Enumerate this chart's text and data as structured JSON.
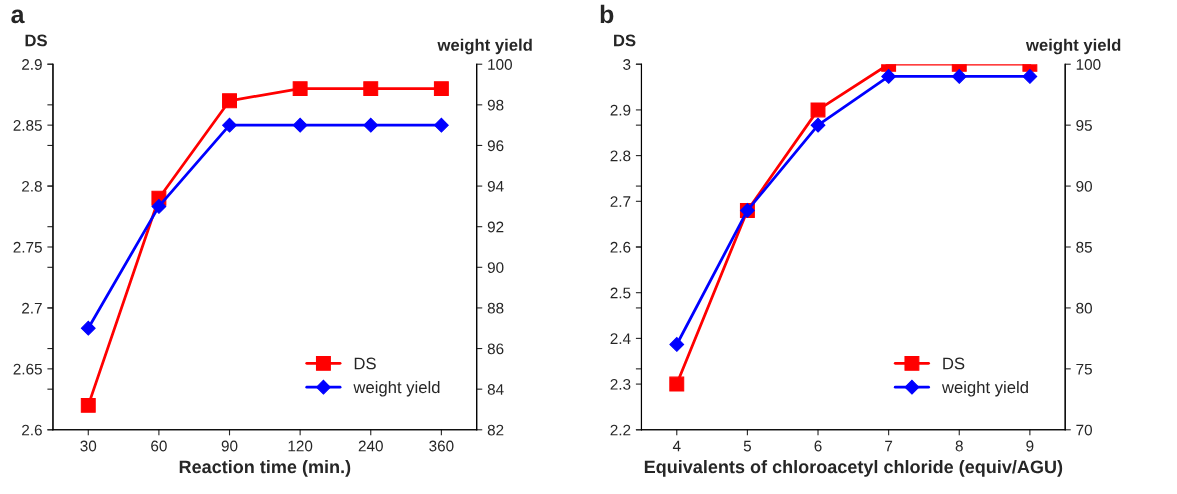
{
  "chart_data": [
    {
      "type": "line",
      "title": "a",
      "xlabel": "Reaction time (min.)",
      "ylabel": "DS",
      "y2label": "weight yield",
      "categories": [
        "30",
        "60",
        "90",
        "120",
        "240",
        "360"
      ],
      "series": [
        {
          "name": "DS",
          "color": "#ff0000",
          "marker": "square",
          "values": [
            2.62,
            2.79,
            2.87,
            2.88,
            2.88,
            2.88
          ]
        },
        {
          "name": "weight yield",
          "color": "#0000ff",
          "marker": "diamond",
          "axis": "y2",
          "values": [
            87,
            93,
            97,
            97,
            97,
            97
          ]
        }
      ],
      "ylim": [
        2.6,
        2.9
      ],
      "yticks": [
        2.6,
        2.65,
        2.7,
        2.75,
        2.8,
        2.85,
        2.9
      ],
      "y2lim": [
        82,
        100
      ],
      "y2ticks": [
        82,
        84,
        86,
        88,
        90,
        92,
        94,
        96,
        98,
        100
      ],
      "legend": "bottom right",
      "line_style": "solid"
    },
    {
      "type": "line",
      "title": "b",
      "xlabel": "Equivalents of chloroacetyl chloride (equiv/AGU)",
      "ylabel": "DS",
      "y2label": "weight yield",
      "categories": [
        "4",
        "5",
        "6",
        "7",
        "8",
        "9"
      ],
      "series": [
        {
          "name": "DS",
          "color": "#ff0000",
          "marker": "square",
          "values": [
            2.3,
            2.68,
            2.9,
            3.0,
            3.0,
            3.0
          ]
        },
        {
          "name": "weight yield",
          "color": "#0000ff",
          "marker": "diamond",
          "axis": "y2",
          "values": [
            77,
            88,
            95,
            99,
            99,
            99
          ]
        }
      ],
      "ylim": [
        2.2,
        3
      ],
      "yticks": [
        2.2,
        2.3,
        2.4,
        2.5,
        2.6,
        2.7,
        2.8,
        2.9,
        3
      ],
      "y2lim": [
        70,
        100
      ],
      "y2ticks": [
        70,
        75,
        80,
        85,
        90,
        95,
        100
      ],
      "legend": "bottom right",
      "line_style": "solid"
    }
  ]
}
